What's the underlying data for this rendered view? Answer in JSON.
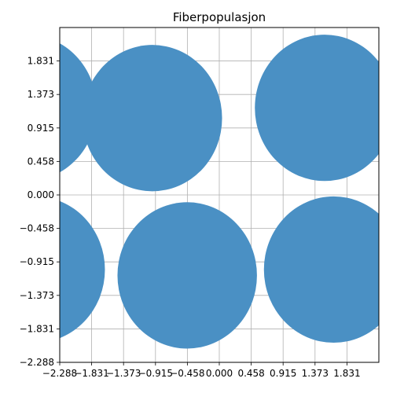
{
  "chart_data": {
    "type": "scatter",
    "title": "Fiberpopulasjon",
    "xlabel": "",
    "ylabel": "",
    "xlim": [
      -2.288,
      2.288
    ],
    "ylim": [
      -2.288,
      2.288
    ],
    "grid": true,
    "color": "#4a90c4",
    "x_ticks": [
      -2.288,
      -1.831,
      -1.373,
      -0.915,
      -0.458,
      0.0,
      0.458,
      0.915,
      1.373,
      1.831
    ],
    "x_tick_labels": [
      "−2.288",
      "−1.831",
      "−1.373",
      "−0.915",
      "−0.458",
      "0.000",
      "0.458",
      "0.915",
      "1.373",
      "1.831"
    ],
    "y_ticks": [
      1.831,
      1.373,
      0.915,
      0.458,
      0.0,
      -0.458,
      -0.915,
      -1.373,
      -1.831,
      -2.288
    ],
    "y_tick_labels": [
      "1.831",
      "1.373",
      "0.915",
      "0.458",
      "0.000",
      "−0.458",
      "−0.915",
      "−1.373",
      "−1.831",
      "−2.288"
    ],
    "fibers": [
      {
        "x": -2.76,
        "y": 1.19,
        "r": 1.0
      },
      {
        "x": -0.96,
        "y": 1.05,
        "r": 1.0
      },
      {
        "x": 1.51,
        "y": 1.19,
        "r": 1.0
      },
      {
        "x": -2.64,
        "y": -1.02,
        "r": 1.0
      },
      {
        "x": -0.46,
        "y": -1.1,
        "r": 1.0
      },
      {
        "x": 1.64,
        "y": -1.02,
        "r": 1.0
      }
    ]
  }
}
